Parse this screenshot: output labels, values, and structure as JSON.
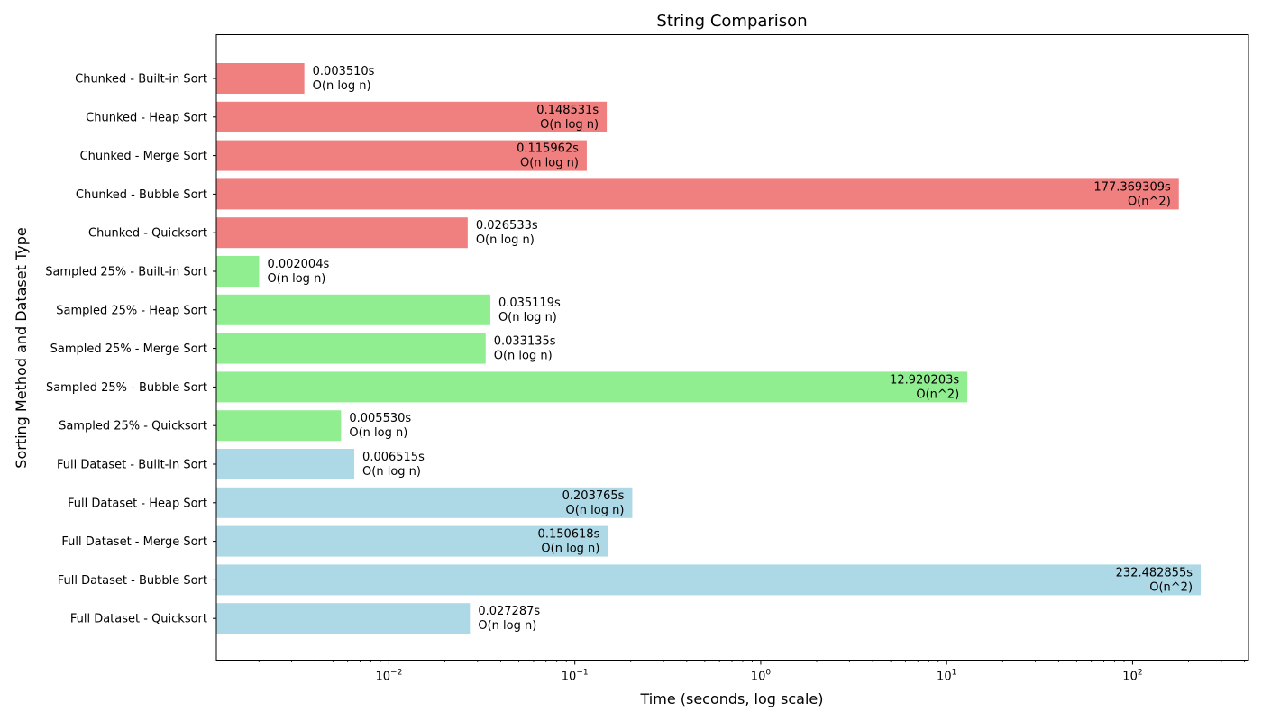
{
  "chart_data": {
    "type": "bar",
    "orientation": "horizontal",
    "title": "String Comparison",
    "xlabel": "Time (seconds, log scale)",
    "ylabel": "Sorting Method and Dataset Type",
    "xscale": "log",
    "xlim": [
      0.00118,
      420
    ],
    "grid": false,
    "legend": "none",
    "xticks": [
      {
        "value": 0.01,
        "base": "10",
        "exp": "−2"
      },
      {
        "value": 0.1,
        "base": "10",
        "exp": "−1"
      },
      {
        "value": 1,
        "base": "10",
        "exp": "0"
      },
      {
        "value": 10,
        "base": "10",
        "exp": "1"
      },
      {
        "value": 100,
        "base": "10",
        "exp": "2"
      }
    ],
    "colors": {
      "Chunked": "#f08080",
      "Sampled 25%": "#90ee90",
      "Full Dataset": "#add8e6"
    },
    "bars": [
      {
        "category": "Chunked - Built-in Sort",
        "group": "Chunked",
        "value": 0.00351,
        "value_label": "0.003510s",
        "complexity": "O(n log n)"
      },
      {
        "category": "Chunked - Heap Sort",
        "group": "Chunked",
        "value": 0.148531,
        "value_label": "0.148531s",
        "complexity": "O(n log n)"
      },
      {
        "category": "Chunked - Merge Sort",
        "group": "Chunked",
        "value": 0.115962,
        "value_label": "0.115962s",
        "complexity": "O(n log n)"
      },
      {
        "category": "Chunked - Bubble Sort",
        "group": "Chunked",
        "value": 177.369309,
        "value_label": "177.369309s",
        "complexity": "O(n^2)"
      },
      {
        "category": "Chunked - Quicksort",
        "group": "Chunked",
        "value": 0.026533,
        "value_label": "0.026533s",
        "complexity": "O(n log n)"
      },
      {
        "category": "Sampled 25% - Built-in Sort",
        "group": "Sampled 25%",
        "value": 0.002004,
        "value_label": "0.002004s",
        "complexity": "O(n log n)"
      },
      {
        "category": "Sampled 25% - Heap Sort",
        "group": "Sampled 25%",
        "value": 0.035119,
        "value_label": "0.035119s",
        "complexity": "O(n log n)"
      },
      {
        "category": "Sampled 25% - Merge Sort",
        "group": "Sampled 25%",
        "value": 0.033135,
        "value_label": "0.033135s",
        "complexity": "O(n log n)"
      },
      {
        "category": "Sampled 25% - Bubble Sort",
        "group": "Sampled 25%",
        "value": 12.920203,
        "value_label": "12.920203s",
        "complexity": "O(n^2)"
      },
      {
        "category": "Sampled 25% - Quicksort",
        "group": "Sampled 25%",
        "value": 0.00553,
        "value_label": "0.005530s",
        "complexity": "O(n log n)"
      },
      {
        "category": "Full Dataset - Built-in Sort",
        "group": "Full Dataset",
        "value": 0.006515,
        "value_label": "0.006515s",
        "complexity": "O(n log n)"
      },
      {
        "category": "Full Dataset - Heap Sort",
        "group": "Full Dataset",
        "value": 0.203765,
        "value_label": "0.203765s",
        "complexity": "O(n log n)"
      },
      {
        "category": "Full Dataset - Merge Sort",
        "group": "Full Dataset",
        "value": 0.150618,
        "value_label": "0.150618s",
        "complexity": "O(n log n)"
      },
      {
        "category": "Full Dataset - Bubble Sort",
        "group": "Full Dataset",
        "value": 232.482855,
        "value_label": "232.482855s",
        "complexity": "O(n^2)"
      },
      {
        "category": "Full Dataset - Quicksort",
        "group": "Full Dataset",
        "value": 0.027287,
        "value_label": "0.027287s",
        "complexity": "O(n log n)"
      }
    ]
  }
}
